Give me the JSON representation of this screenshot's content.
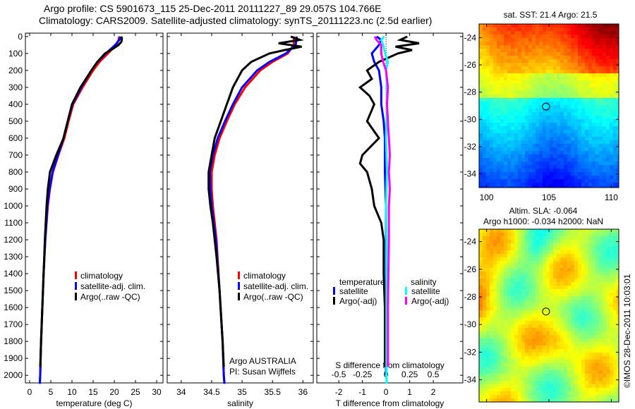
{
  "title_line1": "Argo profile: CS 5901673_115 25-Dec-2011 20111227_89 29.057S 104.766E",
  "title_line2": "Climatology: CARS2009. Satellite-adjusted climatology: synTS_20111223.nc (2.5d earlier)",
  "stamp": "©IMOS 28-Dec-2011 10:03:01",
  "chart_data": [
    {
      "type": "line",
      "name": "temperature",
      "xlabel": "temperature (deg C)",
      "xlim": [
        -1,
        31.5
      ],
      "ylim": [
        2045,
        -20
      ],
      "xticks": [
        0,
        5,
        10,
        15,
        20,
        25,
        30
      ],
      "yticks": [
        0,
        100,
        200,
        300,
        400,
        500,
        600,
        700,
        800,
        900,
        1000,
        1100,
        1200,
        1300,
        1400,
        1500,
        1600,
        1700,
        1800,
        1900,
        2000
      ],
      "legend": [
        "climatology",
        "satellite-adj. clim.",
        "Argo(..raw -QC)"
      ],
      "series": [
        {
          "name": "climatology",
          "color": "#ff0000",
          "depth": [
            0,
            20,
            50,
            100,
            150,
            200,
            300,
            400,
            500,
            600,
            700,
            800,
            900,
            1000,
            1200,
            1400,
            1600,
            1800,
            2000,
            2050
          ],
          "values": [
            21.2,
            21,
            20.5,
            18.5,
            16.5,
            15,
            12.5,
            10.3,
            9.2,
            8.2,
            6.8,
            5.5,
            4.8,
            4.3,
            3.7,
            3.3,
            3,
            2.7,
            2.5,
            2.4
          ]
        },
        {
          "name": "satellite-adj. clim.",
          "color": "#0000ff",
          "depth": [
            0,
            20,
            50,
            100,
            150,
            200,
            300,
            400,
            500,
            600,
            700,
            800,
            900,
            1000,
            1200,
            1400,
            1600,
            1800,
            2000,
            2050
          ],
          "values": [
            21.4,
            21.2,
            20.2,
            18,
            16,
            14.6,
            12.2,
            10.1,
            9,
            8,
            6.7,
            5.4,
            4.7,
            4.2,
            3.7,
            3.3,
            3,
            2.7,
            2.5,
            2.4
          ]
        },
        {
          "name": "Argo(..raw -QC)",
          "color": "#000000",
          "depth": [
            0,
            10,
            30,
            50,
            75,
            100,
            150,
            200,
            300,
            400,
            500,
            600,
            700,
            800,
            900,
            1000,
            1100,
            1200,
            1400,
            1600,
            1800,
            1950
          ],
          "values": [
            21.6,
            21.8,
            21.7,
            21,
            19.5,
            17.8,
            16,
            14.6,
            12,
            10,
            9,
            8,
            6.3,
            4.8,
            4.3,
            4,
            3.8,
            3.6,
            3.3,
            3,
            2.7,
            2.5
          ]
        }
      ]
    },
    {
      "type": "line",
      "name": "salinity",
      "xlabel": "salinity",
      "xlim": [
        33.77,
        36.17
      ],
      "ylim": [
        2045,
        -20
      ],
      "xticks": [
        34,
        34.5,
        35,
        35.5,
        36
      ],
      "xticklabels": [
        "34",
        "34.5",
        "35",
        "35.5",
        "36"
      ],
      "legend": [
        "climatology",
        "satellite-adj. clim.",
        "Argo(..raw -QC)"
      ],
      "annotation": [
        "Argo AUSTRALIA",
        "PI: Susan Wijffels"
      ],
      "series": [
        {
          "name": "climatology",
          "color": "#ff0000",
          "depth": [
            0,
            50,
            100,
            150,
            200,
            300,
            400,
            500,
            600,
            700,
            800,
            900,
            1000,
            1200,
            1500,
            1800,
            2000,
            2050
          ],
          "values": [
            35.85,
            35.85,
            35.75,
            35.5,
            35.3,
            35.05,
            34.88,
            34.75,
            34.63,
            34.55,
            34.5,
            34.5,
            34.52,
            34.58,
            34.63,
            34.68,
            34.7,
            34.71
          ]
        },
        {
          "name": "satellite-adj. clim.",
          "color": "#0000ff",
          "depth": [
            0,
            50,
            100,
            150,
            200,
            300,
            400,
            500,
            600,
            700,
            800,
            900,
            1000,
            1200,
            1500,
            1800,
            2000,
            2050
          ],
          "values": [
            35.9,
            35.88,
            35.72,
            35.45,
            35.25,
            35,
            34.85,
            34.72,
            34.6,
            34.52,
            34.47,
            34.48,
            34.5,
            34.57,
            34.63,
            34.68,
            34.7,
            34.71
          ]
        },
        {
          "name": "Argo(..raw -QC)",
          "color": "#000000",
          "depth": [
            0,
            20,
            40,
            60,
            80,
            100,
            150,
            200,
            300,
            400,
            500,
            600,
            700,
            800,
            900,
            1000,
            1100,
            1300,
            1500,
            1800,
            1950
          ],
          "values": [
            35.8,
            35.95,
            35.6,
            35.98,
            35.7,
            35.45,
            35.15,
            35,
            34.85,
            34.75,
            34.65,
            34.55,
            34.5,
            34.45,
            34.45,
            34.48,
            34.52,
            34.58,
            34.63,
            34.68,
            34.7
          ]
        }
      ]
    },
    {
      "type": "line",
      "name": "difference",
      "xlabel": "T difference from climatology",
      "xlabel2": "S difference from climatology",
      "xlim": [
        -2.93,
        3.25
      ],
      "ylim": [
        2045,
        -20
      ],
      "xticks": [
        -2,
        -1,
        0,
        1,
        2
      ],
      "xticklabels": [
        "-2",
        "-1",
        "0",
        "1",
        "2"
      ],
      "xticks2": [
        -0.5,
        -0.25,
        0,
        0.25,
        0.5
      ],
      "xticklabels2": [
        "-0.5",
        "-0.25",
        "0",
        "0.25",
        "0.5"
      ],
      "s_scale": 4,
      "legend_temperature": {
        "title": "temperature",
        "items": [
          "satellite",
          "Argo(-adj)"
        ]
      },
      "legend_salinity": {
        "title": "salinity",
        "items": [
          "satellite",
          "Argo(-adj)"
        ]
      },
      "series": [
        {
          "name": "T satellite",
          "color": "#0000ff",
          "depth": [
            0,
            20,
            50,
            100,
            150,
            200,
            300,
            400,
            500,
            600,
            800,
            1000,
            1200,
            1500,
            1800,
            2000
          ],
          "values": [
            -0.4,
            -0.2,
            -0.3,
            -0.6,
            -0.5,
            -0.3,
            -0.2,
            -0.2,
            -0.1,
            -0.05,
            -0.05,
            0,
            0,
            0,
            0,
            0
          ]
        },
        {
          "name": "T Argo(-adj)",
          "color": "#000000",
          "depth": [
            0,
            20,
            40,
            60,
            80,
            100,
            150,
            200,
            250,
            300,
            350,
            400,
            500,
            600,
            700,
            750,
            800,
            900,
            1000,
            1100,
            1200,
            1400,
            1600,
            1800,
            1950
          ],
          "values": [
            0.9,
            0.6,
            1.4,
            0.4,
            1.1,
            0.5,
            -0.3,
            -0.8,
            -0.6,
            -1.1,
            -0.7,
            -0.5,
            -0.8,
            -0.3,
            -1,
            -1.1,
            -0.8,
            -0.6,
            -0.5,
            -0.2,
            -0.1,
            -0.1,
            -0.05,
            -0.05,
            -0.05
          ]
        },
        {
          "name": "S satellite",
          "color": "#00ffff",
          "depth": [
            0,
            20,
            50,
            100,
            150,
            200,
            300,
            400,
            600,
            800,
            1000,
            1200,
            1500,
            1800,
            2050
          ],
          "values": [
            -0.02,
            -0.05,
            -0.03,
            -0.01,
            0.02,
            0,
            0.01,
            0.01,
            0,
            0.01,
            0,
            0.005,
            0.005,
            0.005,
            0.005
          ]
        },
        {
          "name": "S Argo(-adj)",
          "color": "#ff00ff",
          "depth": [
            0,
            20,
            50,
            100,
            150,
            200,
            250,
            300,
            400,
            500,
            600,
            700,
            800,
            900,
            1000,
            1200,
            1400,
            1600,
            1950
          ],
          "values": [
            -0.12,
            -0.1,
            -0.05,
            -0.05,
            -0.03,
            0,
            0.01,
            0.02,
            0.01,
            0.02,
            0.03,
            0.04,
            0.03,
            0.04,
            0.03,
            0.03,
            0.025,
            0.02,
            0.02
          ]
        }
      ]
    },
    {
      "type": "heatmap",
      "name": "sst-map",
      "title": "sat. SST: 21.4 Argo: 21.5",
      "xlim": [
        99.4,
        110.6
      ],
      "ylim": [
        -35,
        -23
      ],
      "xticks": [
        100,
        105,
        110
      ],
      "yticks": [
        -24,
        -26,
        -28,
        -30,
        -32,
        -34
      ],
      "marker": [
        104.766,
        -29.057
      ]
    },
    {
      "type": "heatmap",
      "name": "sla-map",
      "title": "Altim. SLA: -0.064",
      "subtitle": "Argo h1000: -0.034 h2000: NaN",
      "xlim": [
        99.4,
        110.6
      ],
      "ylim": [
        -35.6,
        -23.1
      ],
      "xticks": [
        100,
        105,
        110
      ],
      "yticks": [
        -24,
        -26,
        -28,
        -30,
        -32,
        -34
      ],
      "marker": [
        104.766,
        -29.057
      ]
    }
  ]
}
